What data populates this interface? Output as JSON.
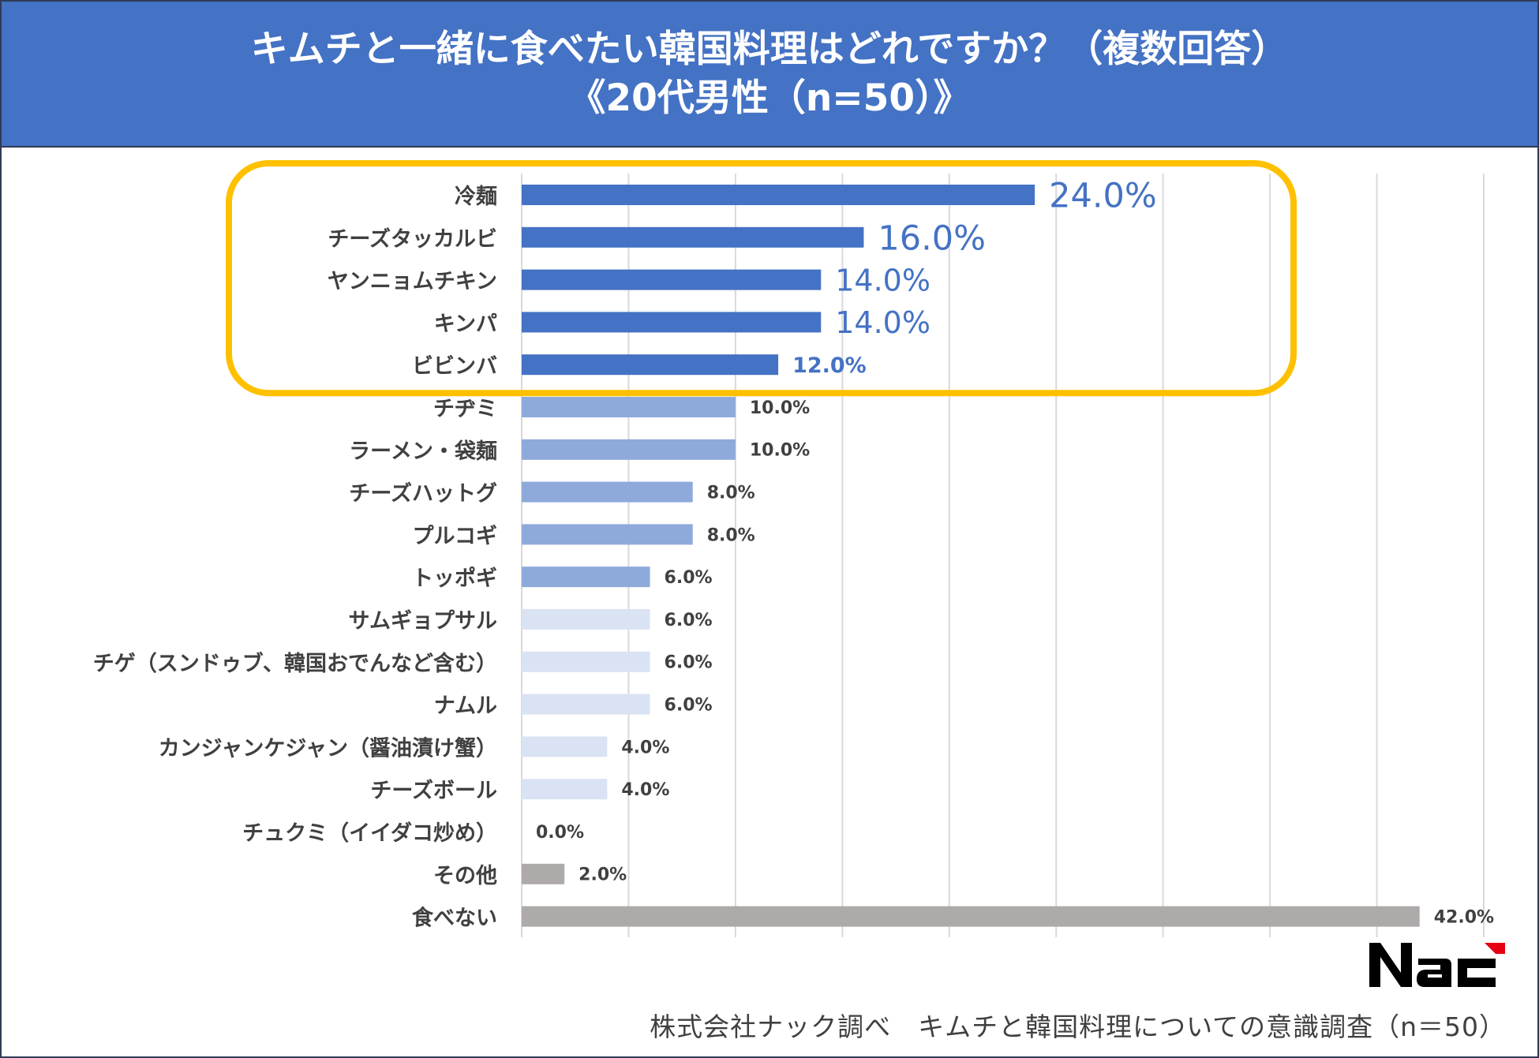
{
  "title": {
    "line1": "キムチと一緒に食べたい韓国料理はどれですか？（複数回答）",
    "line2": "《20代男性（n=50）》"
  },
  "chart_data": {
    "type": "bar",
    "orientation": "horizontal",
    "categories": [
      "冷麺",
      "チーズタッカルビ",
      "ヤンニョムチキン",
      "キンパ",
      "ビビンバ",
      "チヂミ",
      "ラーメン・袋麺",
      "チーズハットグ",
      "プルコギ",
      "トッポギ",
      "サムギョプサル",
      "チゲ（スンドゥブ、韓国おでんなど含む）",
      "ナムル",
      "カンジャンケジャン（醤油漬け蟹）",
      "チーズボール",
      "チュクミ（イイダコ炒め）",
      "その他",
      "食べない"
    ],
    "values": [
      24.0,
      16.0,
      14.0,
      14.0,
      12.0,
      10.0,
      10.0,
      8.0,
      8.0,
      6.0,
      6.0,
      6.0,
      6.0,
      4.0,
      4.0,
      0.0,
      2.0,
      42.0
    ],
    "value_labels": [
      "24.0%",
      "16.0%",
      "14.0%",
      "14.0%",
      "12.0%",
      "10.0%",
      "10.0%",
      "8.0%",
      "8.0%",
      "6.0%",
      "6.0%",
      "6.0%",
      "6.0%",
      "4.0%",
      "4.0%",
      "0.0%",
      "2.0%",
      "42.0%"
    ],
    "bar_colors": [
      "#4472c4",
      "#4472c4",
      "#4472c4",
      "#4472c4",
      "#4472c4",
      "#8eaadb",
      "#8eaadb",
      "#8eaadb",
      "#8eaadb",
      "#8eaadb",
      "#dae3f3",
      "#dae3f3",
      "#dae3f3",
      "#dae3f3",
      "#dae3f3",
      "#dae3f3",
      "#aeaaaa",
      "#aeaaaa"
    ],
    "xlim": [
      0,
      45
    ],
    "grid": true,
    "highlight": {
      "from_index": 0,
      "to_index": 4,
      "color": "#ffc000"
    },
    "xlabel": "",
    "ylabel": ""
  },
  "logo_text": "NAC",
  "footer": "株式会社ナック調べ　キムチと韓国料理についての意識調査（n＝50）"
}
